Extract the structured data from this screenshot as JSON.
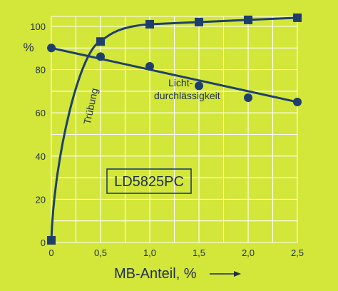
{
  "colors": {
    "background": "#d3e63a",
    "grid": "#ffffff",
    "series": "#1e3f6e",
    "text": "#1c2f45"
  },
  "chart_data": {
    "type": "line",
    "xlabel": "MB-Anteil, %",
    "ylabel": "%",
    "xlim": [
      0,
      2.5
    ],
    "ylim": [
      0,
      100
    ],
    "x_ticks": [
      "0",
      "0,5",
      "1,0",
      "1,5",
      "2,0",
      "2,5"
    ],
    "y_ticks": [
      "0",
      "20",
      "40",
      "60",
      "80",
      "100"
    ],
    "grid": true,
    "label_box": "LD5825PC",
    "series": [
      {
        "name": "Trübung",
        "marker": "square",
        "points": [
          [
            0,
            1
          ],
          [
            0.5,
            93
          ],
          [
            1.0,
            101
          ],
          [
            1.5,
            102
          ],
          [
            2.0,
            103
          ],
          [
            2.5,
            104
          ]
        ]
      },
      {
        "name": "Licht-durchlässigkeit",
        "name_lines": [
          "Licht-",
          "durchlässigkeit"
        ],
        "marker": "circle",
        "points": [
          [
            0,
            90
          ],
          [
            0.5,
            86
          ],
          [
            1.0,
            81.5
          ],
          [
            1.5,
            72.5
          ],
          [
            2.0,
            67
          ],
          [
            2.5,
            65
          ]
        ]
      }
    ]
  }
}
